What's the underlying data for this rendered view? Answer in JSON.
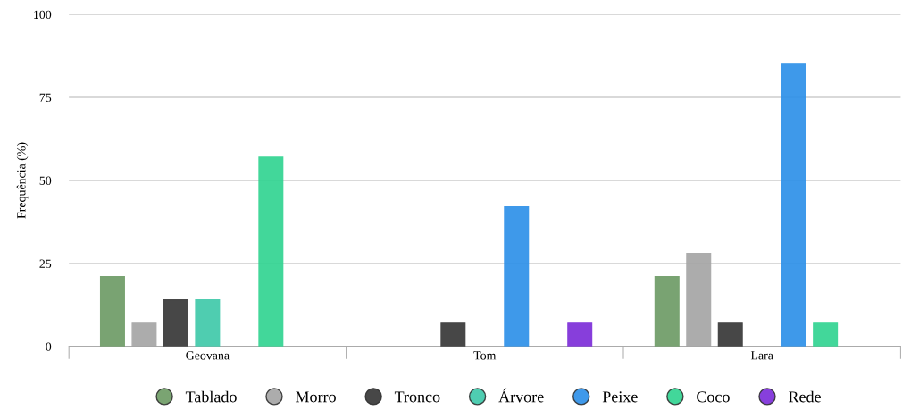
{
  "chart_data": {
    "type": "bar",
    "ylabel": "Frequência (%)",
    "categories": [
      "Geovana",
      "Tom",
      "Lara"
    ],
    "series": [
      {
        "name": "Tablado",
        "color": "#6b9a63",
        "values": [
          21,
          null,
          21
        ]
      },
      {
        "name": "Morro",
        "color": "#a3a3a3",
        "values": [
          7,
          null,
          28
        ]
      },
      {
        "name": "Tronco",
        "color": "#333333",
        "values": [
          14,
          7,
          7
        ]
      },
      {
        "name": "Árvore",
        "color": "#3cc8a8",
        "values": [
          14,
          null,
          null
        ]
      },
      {
        "name": "Peixe",
        "color": "#2a8ee8",
        "values": [
          null,
          42,
          85
        ]
      },
      {
        "name": "Coco",
        "color": "#2ed38f",
        "values": [
          57,
          null,
          7
        ]
      },
      {
        "name": "Rede",
        "color": "#7a2ad8",
        "values": [
          null,
          7,
          null
        ]
      }
    ],
    "ylim": [
      0,
      100
    ],
    "yticks": [
      0,
      25,
      50,
      75,
      100
    ],
    "grid": "y",
    "legend": "bottom",
    "marker": "circle"
  }
}
